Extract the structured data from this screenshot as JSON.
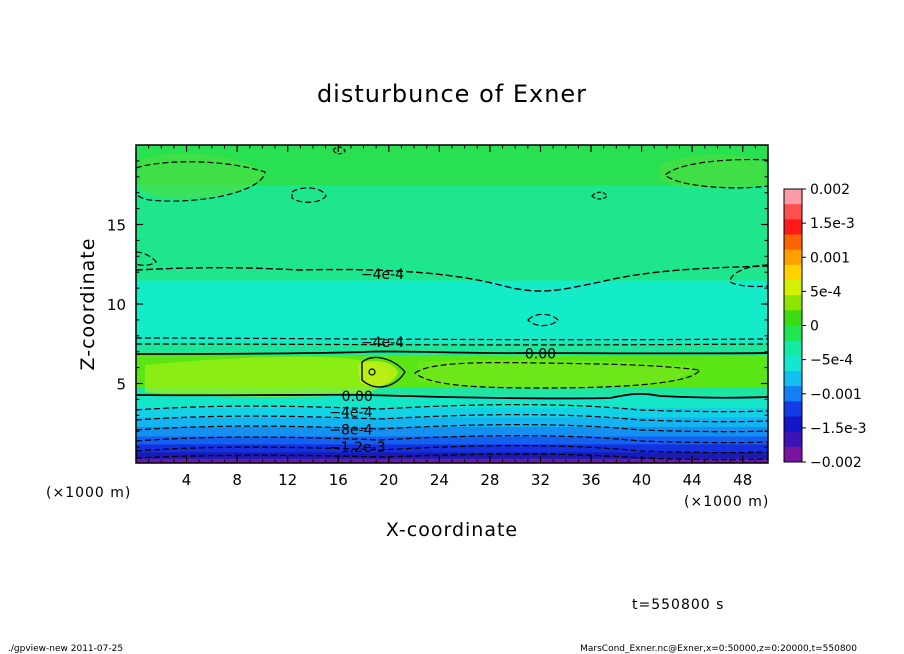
{
  "chart_data": {
    "type": "heatmap",
    "title": "disturbunce of Exner",
    "xlabel": "X-coordinate",
    "ylabel": "Z-coordinate",
    "x_unit_left": "(×1000 m)",
    "x_unit_right": "(×1000 m)",
    "xlim": [
      0,
      50
    ],
    "ylim": [
      0,
      20
    ],
    "x_ticks": [
      {
        "v": 4,
        "label": "4"
      },
      {
        "v": 8,
        "label": "8"
      },
      {
        "v": 12,
        "label": "12"
      },
      {
        "v": 16,
        "label": "16"
      },
      {
        "v": 20,
        "label": "20"
      },
      {
        "v": 24,
        "label": "24"
      },
      {
        "v": 28,
        "label": "28"
      },
      {
        "v": 32,
        "label": "32"
      },
      {
        "v": 36,
        "label": "36"
      },
      {
        "v": 40,
        "label": "40"
      },
      {
        "v": 44,
        "label": "44"
      },
      {
        "v": 48,
        "label": "48"
      }
    ],
    "y_ticks": [
      {
        "v": 5,
        "label": "5"
      },
      {
        "v": 10,
        "label": "10"
      },
      {
        "v": 15,
        "label": "15"
      }
    ],
    "colorbar": {
      "labels": [
        "0.002",
        "1.5e-3",
        "0.001",
        "5e-4",
        "0",
        "−5e-4",
        "−0.001",
        "−1.5e-3",
        "−0.002"
      ],
      "colors": [
        "#ff9aa6",
        "#ff5050",
        "#ff1a1a",
        "#ff6400",
        "#ffa000",
        "#ffd200",
        "#d2f000",
        "#8ce600",
        "#3cdc14",
        "#1ee650",
        "#14eba0",
        "#14e6d2",
        "#14bef0",
        "#147ef5",
        "#143ce6",
        "#1414c8",
        "#3c14b4",
        "#7814a0"
      ]
    },
    "bands": [
      {
        "z0": 0.0,
        "z1": 0.3,
        "color": "#6a1aa8"
      },
      {
        "z0": 0.3,
        "z1": 0.7,
        "color": "#1a1ab4"
      },
      {
        "z0": 0.7,
        "z1": 1.2,
        "color": "#1430e0"
      },
      {
        "z0": 1.2,
        "z1": 1.7,
        "color": "#1460f0"
      },
      {
        "z0": 1.7,
        "z1": 2.3,
        "color": "#1490f0"
      },
      {
        "z0": 2.3,
        "z1": 2.9,
        "color": "#14b4f0"
      },
      {
        "z0": 2.9,
        "z1": 3.5,
        "color": "#14d2e6"
      },
      {
        "z0": 3.5,
        "z1": 4.3,
        "color": "#14e6c8"
      },
      {
        "z0": 4.3,
        "z1": 4.8,
        "color": "#1ee6a0"
      },
      {
        "z0": 4.8,
        "z1": 6.8,
        "color": "#5ae614"
      },
      {
        "z0": 6.8,
        "z1": 7.6,
        "color": "#1ee69a"
      },
      {
        "z0": 7.6,
        "z1": 11.5,
        "color": "#14ebc8"
      },
      {
        "z0": 11.5,
        "z1": 17.5,
        "color": "#1ee68c"
      },
      {
        "z0": 17.5,
        "z1": 20.0,
        "color": "#28e050"
      }
    ],
    "contour_labels": [
      {
        "x": 19.5,
        "z": 11.9,
        "text": "−4e-4"
      },
      {
        "x": 19.5,
        "z": 7.6,
        "text": "−4e-4"
      },
      {
        "x": 32.0,
        "z": 6.9,
        "text": "0.00"
      },
      {
        "x": 17.5,
        "z": 4.2,
        "text": "0.00"
      },
      {
        "x": 17.0,
        "z": 3.2,
        "text": "−4e-4"
      },
      {
        "x": 17.0,
        "z": 2.1,
        "text": "−8e-4"
      },
      {
        "x": 17.5,
        "z": 1.0,
        "text": "−1.2e-3"
      }
    ],
    "time_label": "t=550800 s",
    "footer_left": "./gpview-new  2011-07-25",
    "footer_right": "MarsCond_Exner.nc@Exner,x=0:50000,z=0:20000,t=550800"
  }
}
